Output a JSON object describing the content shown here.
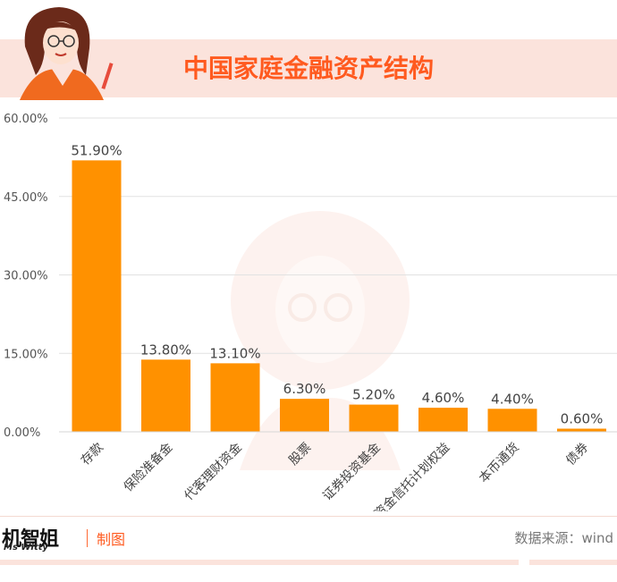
{
  "title": "中国家庭金融资产结构",
  "footer": {
    "logo_main": "机智姐",
    "logo_sub": "Ms Witty",
    "label": "制图",
    "source": "数据来源：wind"
  },
  "colors": {
    "bar": "#ff9100",
    "title": "#ff5a1f",
    "band": "#fbe3dc"
  },
  "chart_data": {
    "type": "bar",
    "title": "中国家庭金融资产结构",
    "xlabel": "",
    "ylabel": "",
    "ylim": [
      0,
      60
    ],
    "yticks": [
      "0.00%",
      "15.00%",
      "30.00%",
      "45.00%",
      "60.00%"
    ],
    "ytick_values": [
      0,
      15,
      30,
      45,
      60
    ],
    "categories": [
      "存款",
      "保险准备金",
      "代客理财资金",
      "股票",
      "证券投资基金",
      "资金信托计划权益",
      "本币通货",
      "债券"
    ],
    "values": [
      51.9,
      13.8,
      13.1,
      6.3,
      5.2,
      4.6,
      4.4,
      0.6
    ],
    "data_labels": [
      "51.90%",
      "13.80%",
      "13.10%",
      "6.30%",
      "5.20%",
      "4.60%",
      "4.40%",
      "0.60%"
    ],
    "grid": true,
    "legend": "none"
  }
}
